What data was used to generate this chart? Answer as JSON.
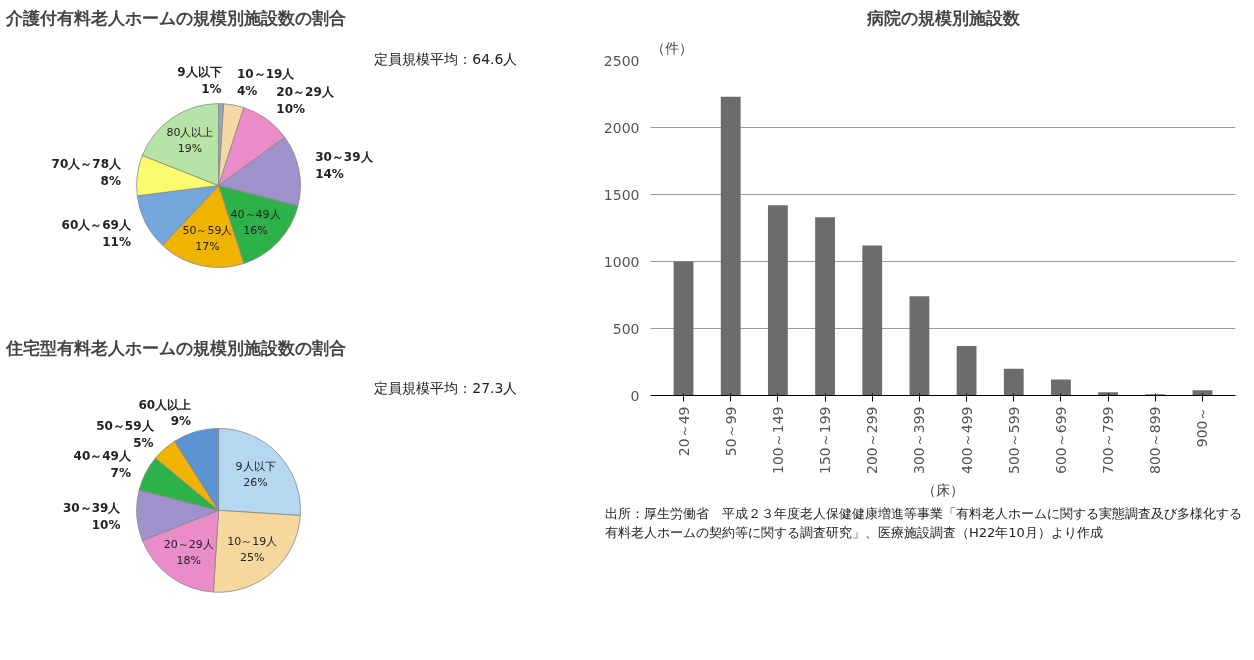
{
  "chart_data": [
    {
      "type": "pie",
      "title": "介護付有料老人ホームの規模別施設数の割合",
      "categories": [
        "9人以下",
        "10～19人",
        "20～29人",
        "30～39人",
        "40～49人",
        "50～59人",
        "60人～69人",
        "70人～78人",
        "80人以上"
      ],
      "values": [
        1,
        4,
        10,
        14,
        16,
        17,
        11,
        8,
        19
      ],
      "value_labels": [
        "1%",
        "4%",
        "10%",
        "14%",
        "16%",
        "17%",
        "11%",
        "8%",
        "19%"
      ],
      "colors": [
        "#8eaabf",
        "#f6d7a6",
        "#e98cc8",
        "#9f92cc",
        "#2db24a",
        "#f0b400",
        "#73a6dc",
        "#fbfb6e",
        "#b8e3a6"
      ],
      "annotations": [
        "定員規模平均：64.6人"
      ]
    },
    {
      "type": "pie",
      "title": "住宅型有料老人ホームの規模別施設数の割合",
      "categories": [
        "9人以下",
        "10～19人",
        "20～29人",
        "30～39人",
        "40～49人",
        "50～59人",
        "60人以上"
      ],
      "values": [
        26,
        25,
        18,
        10,
        7,
        5,
        9
      ],
      "value_labels": [
        "26%",
        "25%",
        "18%",
        "10%",
        "7%",
        "5%",
        "9%"
      ],
      "colors": [
        "#b6d7f0",
        "#f6d89e",
        "#e98cc8",
        "#9f92cc",
        "#2db24a",
        "#f0b400",
        "#5b93d3"
      ],
      "annotations": [
        "定員規模平均：27.3人"
      ]
    },
    {
      "type": "bar",
      "title": "病院の規模別施設数",
      "ylabel": "（件）",
      "xlabel": "（床）",
      "categories": [
        "20～49",
        "50～99",
        "100～149",
        "150～199",
        "200～299",
        "300～399",
        "400～499",
        "500～599",
        "600～699",
        "700～799",
        "800～899",
        "900～"
      ],
      "values": [
        1000,
        2230,
        1420,
        1330,
        1120,
        740,
        370,
        200,
        120,
        25,
        10,
        40
      ],
      "color": "#6b6d6b",
      "ylim": [
        0,
        2500
      ],
      "yticks": [
        0,
        500,
        1000,
        1500,
        2000,
        2500
      ],
      "grid": "y",
      "annotations": [
        "出所：厚生労働省　平成２３年度老人保健健康増進等事業「有料老人ホームに関する実態調査及び多様化する有料老人ホームの契約等に関する調査研究」、医療施設調査（H22年10月）より作成"
      ]
    }
  ]
}
